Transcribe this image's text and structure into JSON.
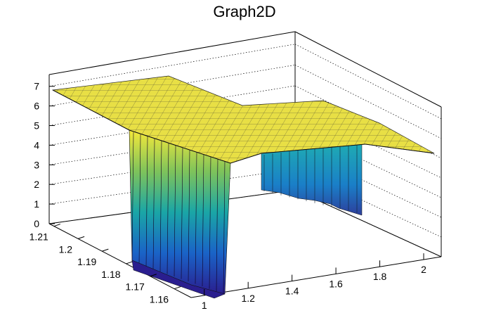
{
  "chart_data": {
    "type": "surface",
    "title": "Graph2D",
    "xlabel": "",
    "ylabel": "",
    "zlabel": "",
    "xlim": [
      0.94,
      2.08
    ],
    "ylim": [
      1.153,
      1.212
    ],
    "zlim": [
      0,
      7.6
    ],
    "x_ticks": [
      "1",
      "1.2",
      "1.4",
      "1.6",
      "1.8",
      "2"
    ],
    "y_ticks": [
      "1.16",
      "1.17",
      "1.18",
      "1.19",
      "1.2",
      "1.21"
    ],
    "z_ticks": [
      "0",
      "1",
      "2",
      "3",
      "4",
      "5",
      "6",
      "7"
    ],
    "palette": "viridis-like (dark blue to yellow)",
    "grid": "dotted on back walls",
    "surface": {
      "description_values": {
        "plateau_high_level": 7.0,
        "plateau_low_level": 3.8,
        "trough_floor": 0.0,
        "trough_x_range": [
          1.0,
          1.08
        ],
        "second_drop_x_range": [
          1.4,
          1.72
        ],
        "second_drop_floor": 1.2
      }
    }
  },
  "icons": {}
}
